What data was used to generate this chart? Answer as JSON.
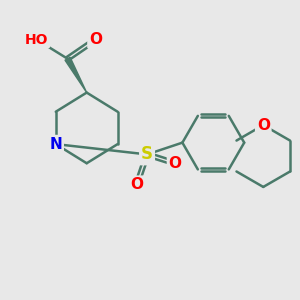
{
  "bg_color": "#e8e8e8",
  "bond_color": "#4a7a6a",
  "bond_width": 1.8,
  "atom_colors": {
    "N": "#0000ee",
    "O": "#ff0000",
    "S": "#cccc00",
    "H": "#888888"
  },
  "font_size": 10
}
